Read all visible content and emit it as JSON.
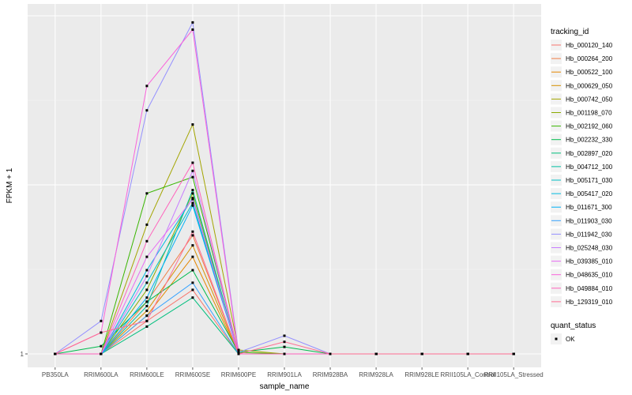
{
  "chart_data": {
    "type": "line",
    "xlabel": "sample_name",
    "ylabel": "FPKM + 1",
    "y_tick_labels": [
      "1"
    ],
    "x": [
      "PB350LA",
      "RRIM600LA",
      "RRIM600LE",
      "RRIM600SE",
      "RRIM600PE",
      "RRIM901LA",
      "RRIM928BA",
      "RRIM928LA",
      "RRIM928LE",
      "RRII105LA_Control",
      "RRII105LA_Stressed"
    ],
    "y_scale": "log (unlabeled, values are approximate relative levels)",
    "ylim": [
      1,
      64
    ],
    "series": [
      {
        "name": "Hb_000120_140",
        "color": "#F8766D",
        "values": [
          1,
          1,
          1.5,
          2.2,
          1,
          1,
          1,
          1,
          1,
          1,
          1
        ]
      },
      {
        "name": "Hb_000264_200",
        "color": "#F07E46",
        "values": [
          1,
          1,
          1.9,
          4.3,
          1,
          1,
          1,
          1,
          1,
          1,
          1
        ]
      },
      {
        "name": "Hb_000522_100",
        "color": "#E58700",
        "values": [
          1,
          1,
          1.6,
          3.3,
          1,
          1,
          1,
          1,
          1,
          1,
          1
        ]
      },
      {
        "name": "Hb_000629_050",
        "color": "#D59000",
        "values": [
          1,
          1,
          1.7,
          3.8,
          1,
          1,
          1,
          1,
          1,
          1,
          1
        ]
      },
      {
        "name": "Hb_000742_050",
        "color": "#A3A500",
        "values": [
          1,
          1,
          4.9,
          16.8,
          1.05,
          1,
          1,
          1,
          1,
          1,
          1
        ]
      },
      {
        "name": "Hb_001198_070",
        "color": "#8BAB00",
        "values": [
          1,
          1,
          2.2,
          7.2,
          1,
          1,
          1,
          1,
          1,
          1,
          1
        ]
      },
      {
        "name": "Hb_002192_060",
        "color": "#39B600",
        "values": [
          1,
          1,
          7.2,
          8.8,
          1.02,
          1,
          1,
          1,
          1,
          1,
          1
        ]
      },
      {
        "name": "Hb_002232_330",
        "color": "#00BB4E",
        "values": [
          1,
          1.1,
          1.9,
          2.8,
          1.02,
          1.09,
          1,
          1,
          1,
          1,
          1
        ]
      },
      {
        "name": "Hb_002897_020",
        "color": "#00BF7D",
        "values": [
          1,
          1,
          1.4,
          2,
          1,
          1,
          1,
          1,
          1,
          1,
          1
        ]
      },
      {
        "name": "Hb_004712_100",
        "color": "#00C1A3",
        "values": [
          1,
          1,
          1.8,
          7.5,
          1,
          1,
          1,
          1,
          1,
          1,
          1
        ]
      },
      {
        "name": "Hb_005171_030",
        "color": "#00BFC4",
        "values": [
          1,
          1,
          2.4,
          6.4,
          1,
          1,
          1,
          1,
          1,
          1,
          1
        ]
      },
      {
        "name": "Hb_005417_020",
        "color": "#00BAE0",
        "values": [
          1,
          1,
          2.8,
          6.8,
          1,
          1,
          1,
          1,
          1,
          1,
          1
        ]
      },
      {
        "name": "Hb_011671_300",
        "color": "#00B0F6",
        "values": [
          1,
          1,
          2,
          6.2,
          1,
          1,
          1,
          1,
          1,
          1,
          1
        ]
      },
      {
        "name": "Hb_011903_030",
        "color": "#35A2FF",
        "values": [
          1,
          1,
          1.6,
          2.4,
          1,
          1,
          1,
          1,
          1,
          1,
          1
        ]
      },
      {
        "name": "Hb_011942_030",
        "color": "#9590FF",
        "values": [
          1,
          1.5,
          20,
          59,
          1.02,
          1.25,
          1,
          1,
          1,
          1,
          1
        ]
      },
      {
        "name": "Hb_025248_030",
        "color": "#C77CFF",
        "values": [
          1,
          1,
          2.6,
          9.5,
          1,
          1,
          1,
          1,
          1,
          1,
          1
        ]
      },
      {
        "name": "Hb_039385_010",
        "color": "#E76BF3",
        "values": [
          1,
          1,
          3.3,
          6.7,
          1,
          1,
          1,
          1,
          1,
          1,
          1
        ]
      },
      {
        "name": "Hb_048635_010",
        "color": "#FA62DB",
        "values": [
          1,
          1.3,
          27,
          54,
          1,
          1,
          1,
          1,
          1,
          1,
          1
        ]
      },
      {
        "name": "Hb_049884_010",
        "color": "#FF62BC",
        "values": [
          1,
          1,
          4,
          10.5,
          1,
          1,
          1,
          1,
          1,
          1,
          1
        ]
      },
      {
        "name": "Hb_129319_010",
        "color": "#FF6C91",
        "values": [
          1,
          1.3,
          1.5,
          4.5,
          1,
          1.16,
          1,
          1,
          1,
          1,
          1
        ]
      }
    ],
    "legend": [
      {
        "title": "tracking_id"
      },
      {
        "title": "quant_status",
        "entries": [
          "OK"
        ]
      }
    ]
  }
}
